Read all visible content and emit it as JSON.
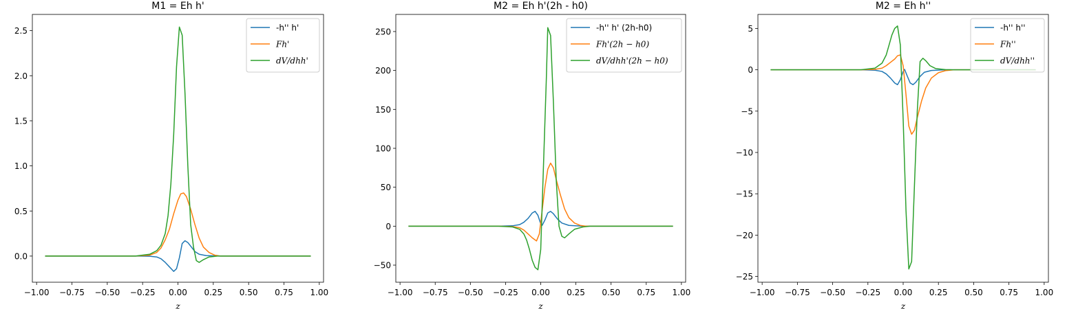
{
  "chart_data": [
    {
      "type": "line",
      "title": "M1 = Eh h'",
      "xlabel": "z",
      "ylabel": "",
      "xlim": [
        -1.03,
        1.03
      ],
      "ylim": [
        -0.29,
        2.68
      ],
      "xticks": [
        -1.0,
        -0.75,
        -0.5,
        -0.25,
        0.0,
        0.25,
        0.5,
        0.75,
        1.0
      ],
      "xtick_labels": [
        "−1.00",
        "−0.75",
        "−0.50",
        "−0.25",
        "0.00",
        "0.25",
        "0.50",
        "0.75",
        "1.00"
      ],
      "yticks": [
        0.0,
        0.5,
        1.0,
        1.5,
        2.0,
        2.5
      ],
      "ytick_labels": [
        "0.0",
        "0.5",
        "1.0",
        "1.5",
        "2.0",
        "2.5"
      ],
      "legend_position": "top-right",
      "series": [
        {
          "name": "-h'' h'",
          "color": "#1f77b4",
          "points": [
            [
              -0.94,
              0
            ],
            [
              -0.3,
              0
            ],
            [
              -0.2,
              -0.002
            ],
            [
              -0.15,
              -0.01
            ],
            [
              -0.12,
              -0.03
            ],
            [
              -0.09,
              -0.07
            ],
            [
              -0.06,
              -0.12
            ],
            [
              -0.03,
              -0.17
            ],
            [
              -0.01,
              -0.14
            ],
            [
              0.01,
              -0.02
            ],
            [
              0.03,
              0.14
            ],
            [
              0.05,
              0.17
            ],
            [
              0.07,
              0.15
            ],
            [
              0.09,
              0.11
            ],
            [
              0.12,
              0.05
            ],
            [
              0.15,
              0.02
            ],
            [
              0.2,
              0.005
            ],
            [
              0.3,
              0
            ],
            [
              0.94,
              0
            ]
          ]
        },
        {
          "name": "Fh'",
          "color": "#ff7f0e",
          "points": [
            [
              -0.94,
              0
            ],
            [
              -0.3,
              0
            ],
            [
              -0.2,
              0.01
            ],
            [
              -0.15,
              0.04
            ],
            [
              -0.12,
              0.09
            ],
            [
              -0.09,
              0.18
            ],
            [
              -0.06,
              0.3
            ],
            [
              -0.03,
              0.47
            ],
            [
              0.0,
              0.62
            ],
            [
              0.02,
              0.69
            ],
            [
              0.04,
              0.7
            ],
            [
              0.06,
              0.66
            ],
            [
              0.09,
              0.52
            ],
            [
              0.12,
              0.35
            ],
            [
              0.15,
              0.2
            ],
            [
              0.18,
              0.1
            ],
            [
              0.22,
              0.04
            ],
            [
              0.26,
              0.01
            ],
            [
              0.3,
              0
            ],
            [
              0.94,
              0
            ]
          ]
        },
        {
          "name": "dV/dhh'",
          "color": "#2ca02c",
          "points": [
            [
              -0.94,
              0
            ],
            [
              -0.3,
              0
            ],
            [
              -0.2,
              0.02
            ],
            [
              -0.15,
              0.06
            ],
            [
              -0.12,
              0.12
            ],
            [
              -0.09,
              0.25
            ],
            [
              -0.07,
              0.45
            ],
            [
              -0.05,
              0.8
            ],
            [
              -0.03,
              1.35
            ],
            [
              -0.01,
              2.1
            ],
            [
              0.01,
              2.54
            ],
            [
              0.03,
              2.45
            ],
            [
              0.05,
              1.8
            ],
            [
              0.07,
              1.0
            ],
            [
              0.09,
              0.35
            ],
            [
              0.11,
              0.1
            ],
            [
              0.13,
              -0.05
            ],
            [
              0.15,
              -0.07
            ],
            [
              0.18,
              -0.04
            ],
            [
              0.22,
              -0.01
            ],
            [
              0.28,
              0
            ],
            [
              0.94,
              0
            ]
          ]
        }
      ]
    },
    {
      "type": "line",
      "title": "M2 = Eh h'(2h - h0)",
      "xlabel": "z",
      "ylabel": "",
      "xlim": [
        -1.03,
        1.03
      ],
      "ylim": [
        -72,
        272
      ],
      "xticks": [
        -1.0,
        -0.75,
        -0.5,
        -0.25,
        0.0,
        0.25,
        0.5,
        0.75,
        1.0
      ],
      "xtick_labels": [
        "−1.00",
        "−0.75",
        "−0.50",
        "−0.25",
        "0.00",
        "0.25",
        "0.50",
        "0.75",
        "1.00"
      ],
      "yticks": [
        -50,
        0,
        50,
        100,
        150,
        200,
        250
      ],
      "ytick_labels": [
        "−50",
        "0",
        "50",
        "100",
        "150",
        "200",
        "250"
      ],
      "legend_position": "top-right",
      "series": [
        {
          "name": "-h'' h' (2h-h0)",
          "color": "#1f77b4",
          "points": [
            [
              -0.94,
              0
            ],
            [
              -0.3,
              0
            ],
            [
              -0.2,
              0.5
            ],
            [
              -0.15,
              2
            ],
            [
              -0.12,
              5
            ],
            [
              -0.09,
              10
            ],
            [
              -0.06,
              17
            ],
            [
              -0.04,
              19
            ],
            [
              -0.02,
              14
            ],
            [
              0.0,
              3
            ],
            [
              0.01,
              1
            ],
            [
              0.03,
              8
            ],
            [
              0.05,
              17
            ],
            [
              0.07,
              19
            ],
            [
              0.09,
              16
            ],
            [
              0.12,
              9
            ],
            [
              0.15,
              4
            ],
            [
              0.2,
              1
            ],
            [
              0.3,
              0
            ],
            [
              0.94,
              0
            ]
          ]
        },
        {
          "name": "Fh'(2h − h0)",
          "color": "#ff7f0e",
          "points": [
            [
              -0.94,
              0
            ],
            [
              -0.3,
              0
            ],
            [
              -0.2,
              -0.5
            ],
            [
              -0.15,
              -2
            ],
            [
              -0.12,
              -5
            ],
            [
              -0.09,
              -10
            ],
            [
              -0.06,
              -15
            ],
            [
              -0.03,
              -19
            ],
            [
              -0.01,
              -10
            ],
            [
              0.01,
              20
            ],
            [
              0.03,
              50
            ],
            [
              0.05,
              73
            ],
            [
              0.07,
              81
            ],
            [
              0.09,
              75
            ],
            [
              0.11,
              60
            ],
            [
              0.14,
              40
            ],
            [
              0.17,
              22
            ],
            [
              0.2,
              11
            ],
            [
              0.24,
              4
            ],
            [
              0.28,
              1
            ],
            [
              0.32,
              0
            ],
            [
              0.94,
              0
            ]
          ]
        },
        {
          "name": "dV/dhh'(2h − h0)",
          "color": "#2ca02c",
          "points": [
            [
              -0.94,
              0
            ],
            [
              -0.3,
              0
            ],
            [
              -0.2,
              -1
            ],
            [
              -0.15,
              -4
            ],
            [
              -0.12,
              -10
            ],
            [
              -0.1,
              -18
            ],
            [
              -0.08,
              -30
            ],
            [
              -0.06,
              -44
            ],
            [
              -0.04,
              -53
            ],
            [
              -0.02,
              -56
            ],
            [
              0.0,
              -30
            ],
            [
              0.02,
              80
            ],
            [
              0.04,
              190
            ],
            [
              0.05,
              255
            ],
            [
              0.07,
              245
            ],
            [
              0.09,
              160
            ],
            [
              0.11,
              60
            ],
            [
              0.13,
              0
            ],
            [
              0.15,
              -13
            ],
            [
              0.17,
              -15
            ],
            [
              0.2,
              -10
            ],
            [
              0.24,
              -4
            ],
            [
              0.3,
              -1
            ],
            [
              0.35,
              0
            ],
            [
              0.94,
              0
            ]
          ]
        }
      ]
    },
    {
      "type": "line",
      "title": "M2 = Eh h''",
      "xlabel": "z",
      "ylabel": "",
      "xlim": [
        -1.03,
        1.03
      ],
      "ylim": [
        -25.7,
        6.7
      ],
      "xticks": [
        -1.0,
        -0.75,
        -0.5,
        -0.25,
        0.0,
        0.25,
        0.5,
        0.75,
        1.0
      ],
      "xtick_labels": [
        "−1.00",
        "−0.75",
        "−0.50",
        "−0.25",
        "0.00",
        "0.25",
        "0.50",
        "0.75",
        "1.00"
      ],
      "yticks": [
        -25,
        -20,
        -15,
        -10,
        -5,
        0,
        5
      ],
      "ytick_labels": [
        "−25",
        "−20",
        "−15",
        "−10",
        "−5",
        "0",
        "5"
      ],
      "legend_position": "top-right",
      "series": [
        {
          "name": "-h'' h''",
          "color": "#1f77b4",
          "points": [
            [
              -0.94,
              0
            ],
            [
              -0.3,
              0
            ],
            [
              -0.2,
              -0.05
            ],
            [
              -0.15,
              -0.2
            ],
            [
              -0.12,
              -0.5
            ],
            [
              -0.09,
              -1.0
            ],
            [
              -0.06,
              -1.6
            ],
            [
              -0.04,
              -1.8
            ],
            [
              -0.02,
              -1.2
            ],
            [
              0.0,
              -0.2
            ],
            [
              0.01,
              0.05
            ],
            [
              0.03,
              -0.8
            ],
            [
              0.05,
              -1.6
            ],
            [
              0.07,
              -1.8
            ],
            [
              0.09,
              -1.5
            ],
            [
              0.12,
              -0.8
            ],
            [
              0.15,
              -0.3
            ],
            [
              0.2,
              -0.08
            ],
            [
              0.3,
              0
            ],
            [
              0.94,
              0
            ]
          ]
        },
        {
          "name": "Fh''",
          "color": "#ff7f0e",
          "points": [
            [
              -0.94,
              0
            ],
            [
              -0.3,
              0
            ],
            [
              -0.2,
              0.05
            ],
            [
              -0.15,
              0.2
            ],
            [
              -0.12,
              0.5
            ],
            [
              -0.09,
              0.9
            ],
            [
              -0.06,
              1.3
            ],
            [
              -0.04,
              1.7
            ],
            [
              -0.02,
              1.8
            ],
            [
              0.0,
              0.5
            ],
            [
              0.02,
              -3
            ],
            [
              0.04,
              -6.8
            ],
            [
              0.06,
              -7.8
            ],
            [
              0.08,
              -7.3
            ],
            [
              0.1,
              -5.8
            ],
            [
              0.13,
              -3.8
            ],
            [
              0.16,
              -2.2
            ],
            [
              0.2,
              -1.0
            ],
            [
              0.25,
              -0.35
            ],
            [
              0.3,
              -0.1
            ],
            [
              0.36,
              0
            ],
            [
              0.94,
              0
            ]
          ]
        },
        {
          "name": "dV/dhh''",
          "color": "#2ca02c",
          "points": [
            [
              -0.94,
              0
            ],
            [
              -0.3,
              0
            ],
            [
              -0.2,
              0.2
            ],
            [
              -0.15,
              0.8
            ],
            [
              -0.12,
              1.8
            ],
            [
              -0.1,
              3.0
            ],
            [
              -0.08,
              4.2
            ],
            [
              -0.06,
              5.0
            ],
            [
              -0.04,
              5.3
            ],
            [
              -0.02,
              3.0
            ],
            [
              0.0,
              -6
            ],
            [
              0.02,
              -17
            ],
            [
              0.04,
              -24.1
            ],
            [
              0.06,
              -23.2
            ],
            [
              0.08,
              -14
            ],
            [
              0.1,
              -5
            ],
            [
              0.12,
              1.0
            ],
            [
              0.14,
              1.4
            ],
            [
              0.16,
              1.1
            ],
            [
              0.19,
              0.5
            ],
            [
              0.23,
              0.15
            ],
            [
              0.3,
              0.02
            ],
            [
              0.36,
              0
            ],
            [
              0.94,
              0
            ]
          ]
        }
      ]
    }
  ]
}
